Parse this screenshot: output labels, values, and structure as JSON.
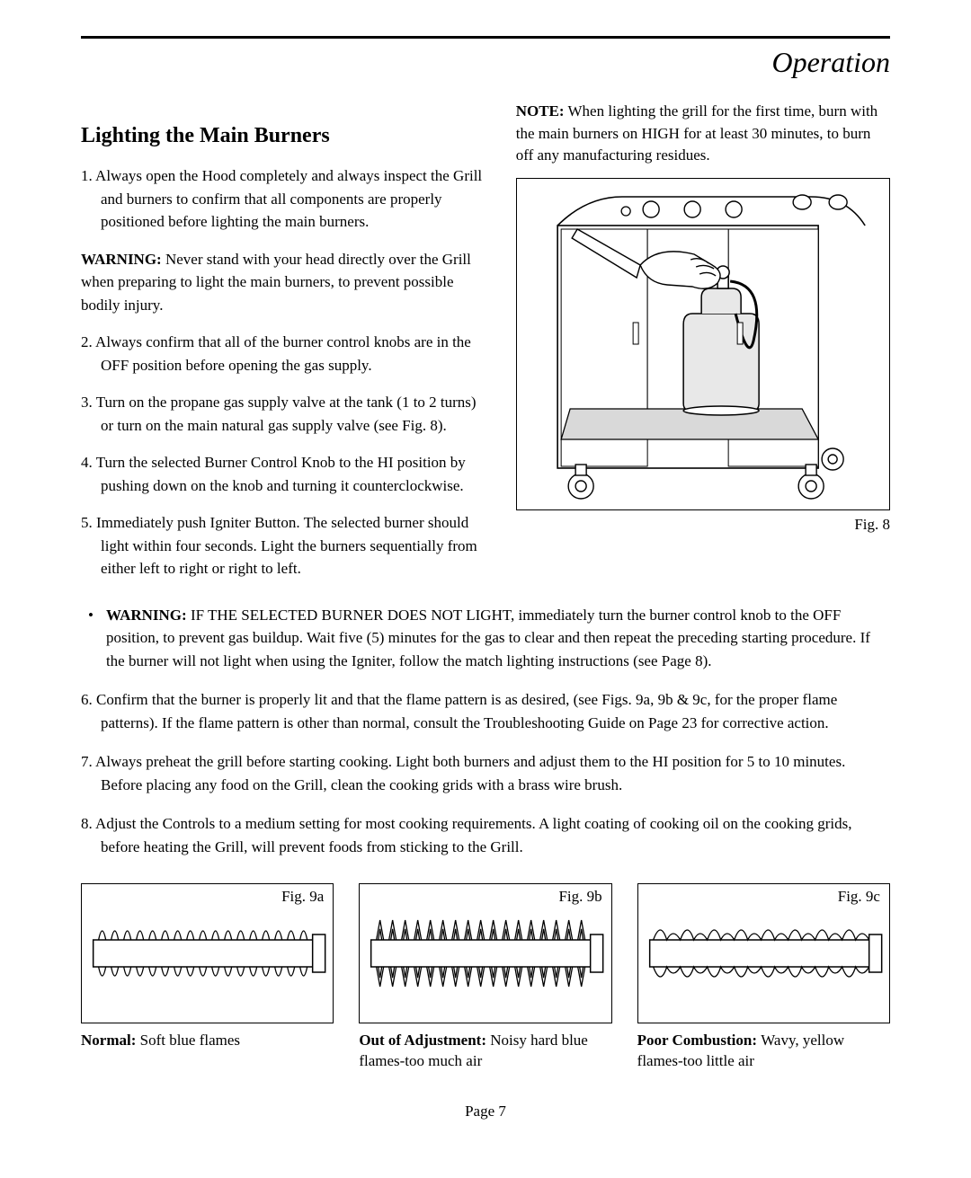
{
  "colors": {
    "text": "#000000",
    "background": "#ffffff",
    "rule": "#000000",
    "border": "#000000",
    "shelf_fill": "#d9d9d9",
    "tank_fill": "#e8e8e8"
  },
  "typography": {
    "body_family": "Georgia, 'Times New Roman', serif",
    "body_size_pt": 12.5,
    "section_title_size_pt": 24,
    "subheading_size_pt": 18
  },
  "header": {
    "section_title": "Operation"
  },
  "subheading": "Lighting the Main Burners",
  "note": {
    "prefix": "NOTE:",
    "text": "When lighting the grill for the first time, burn with the main burners on HIGH for at least 30 minutes, to burn off any manufacturing residues."
  },
  "left_items": [
    "1. Always open the Hood completely and always inspect the Grill and burners to confirm that all components are properly positioned  before lighting the main burners.",
    {
      "warning_prefix": "WARNING:",
      "warning_text": "Never stand with your head directly over the Grill when preparing to light the main burners, to prevent possible bodily injury."
    },
    "2. Always confirm that all of the burner control knobs are in the OFF position before opening the gas supply.",
    "3. Turn on the propane gas supply valve at the tank (1 to 2 turns) or turn on the main natural gas supply valve (see Fig. 8).",
    "4. Turn the selected Burner Control Knob to the HI position by pushing down on the knob and turning it counterclockwise.",
    "5. Immediately push Igniter Button. The selected burner should light within four seconds. Light the burners sequentially from either left to right or right to left."
  ],
  "bullet_warning": {
    "prefix": "WARNING:",
    "text": "IF THE SELECTED BURNER DOES NOT LIGHT, immediately turn the burner control knob to the OFF position, to prevent gas buildup. Wait five (5) minutes for the gas to clear and then repeat the preceding starting procedure. If the burner will not light when using the Igniter, follow the match lighting instructions (see Page 8)."
  },
  "full_items": [
    "6. Confirm that the burner is properly lit and that the flame pattern is as desired, (see Figs. 9a, 9b & 9c, for the proper flame patterns). If the flame pattern is other than normal, consult the Troubleshooting Guide on Page 23 for corrective action.",
    "7. Always preheat the grill before starting cooking. Light both burners and adjust them to the HI position for 5 to 10 minutes. Before placing any food on the Grill, clean the cooking grids with a brass wire brush.",
    "8. Adjust the Controls to a medium setting for most cooking requirements. A light coating of cooking oil on the cooking grids, before heating the Grill, will prevent foods from sticking to the Grill."
  ],
  "fig_main_label": "Fig. 8",
  "flames": [
    {
      "fig_label": "Fig. 9a",
      "caption_bold": "Normal:",
      "caption_rest": "Soft blue flames",
      "type": "normal"
    },
    {
      "fig_label": "Fig. 9b",
      "caption_bold": "Out of Adjustment:",
      "caption_rest": "Noisy hard blue flames-too much air",
      "type": "out"
    },
    {
      "fig_label": "Fig. 9c",
      "caption_bold": "Poor Combustion:",
      "caption_rest": "Wavy, yellow flames-too little air",
      "type": "poor"
    }
  ],
  "page_footer": "Page 7"
}
